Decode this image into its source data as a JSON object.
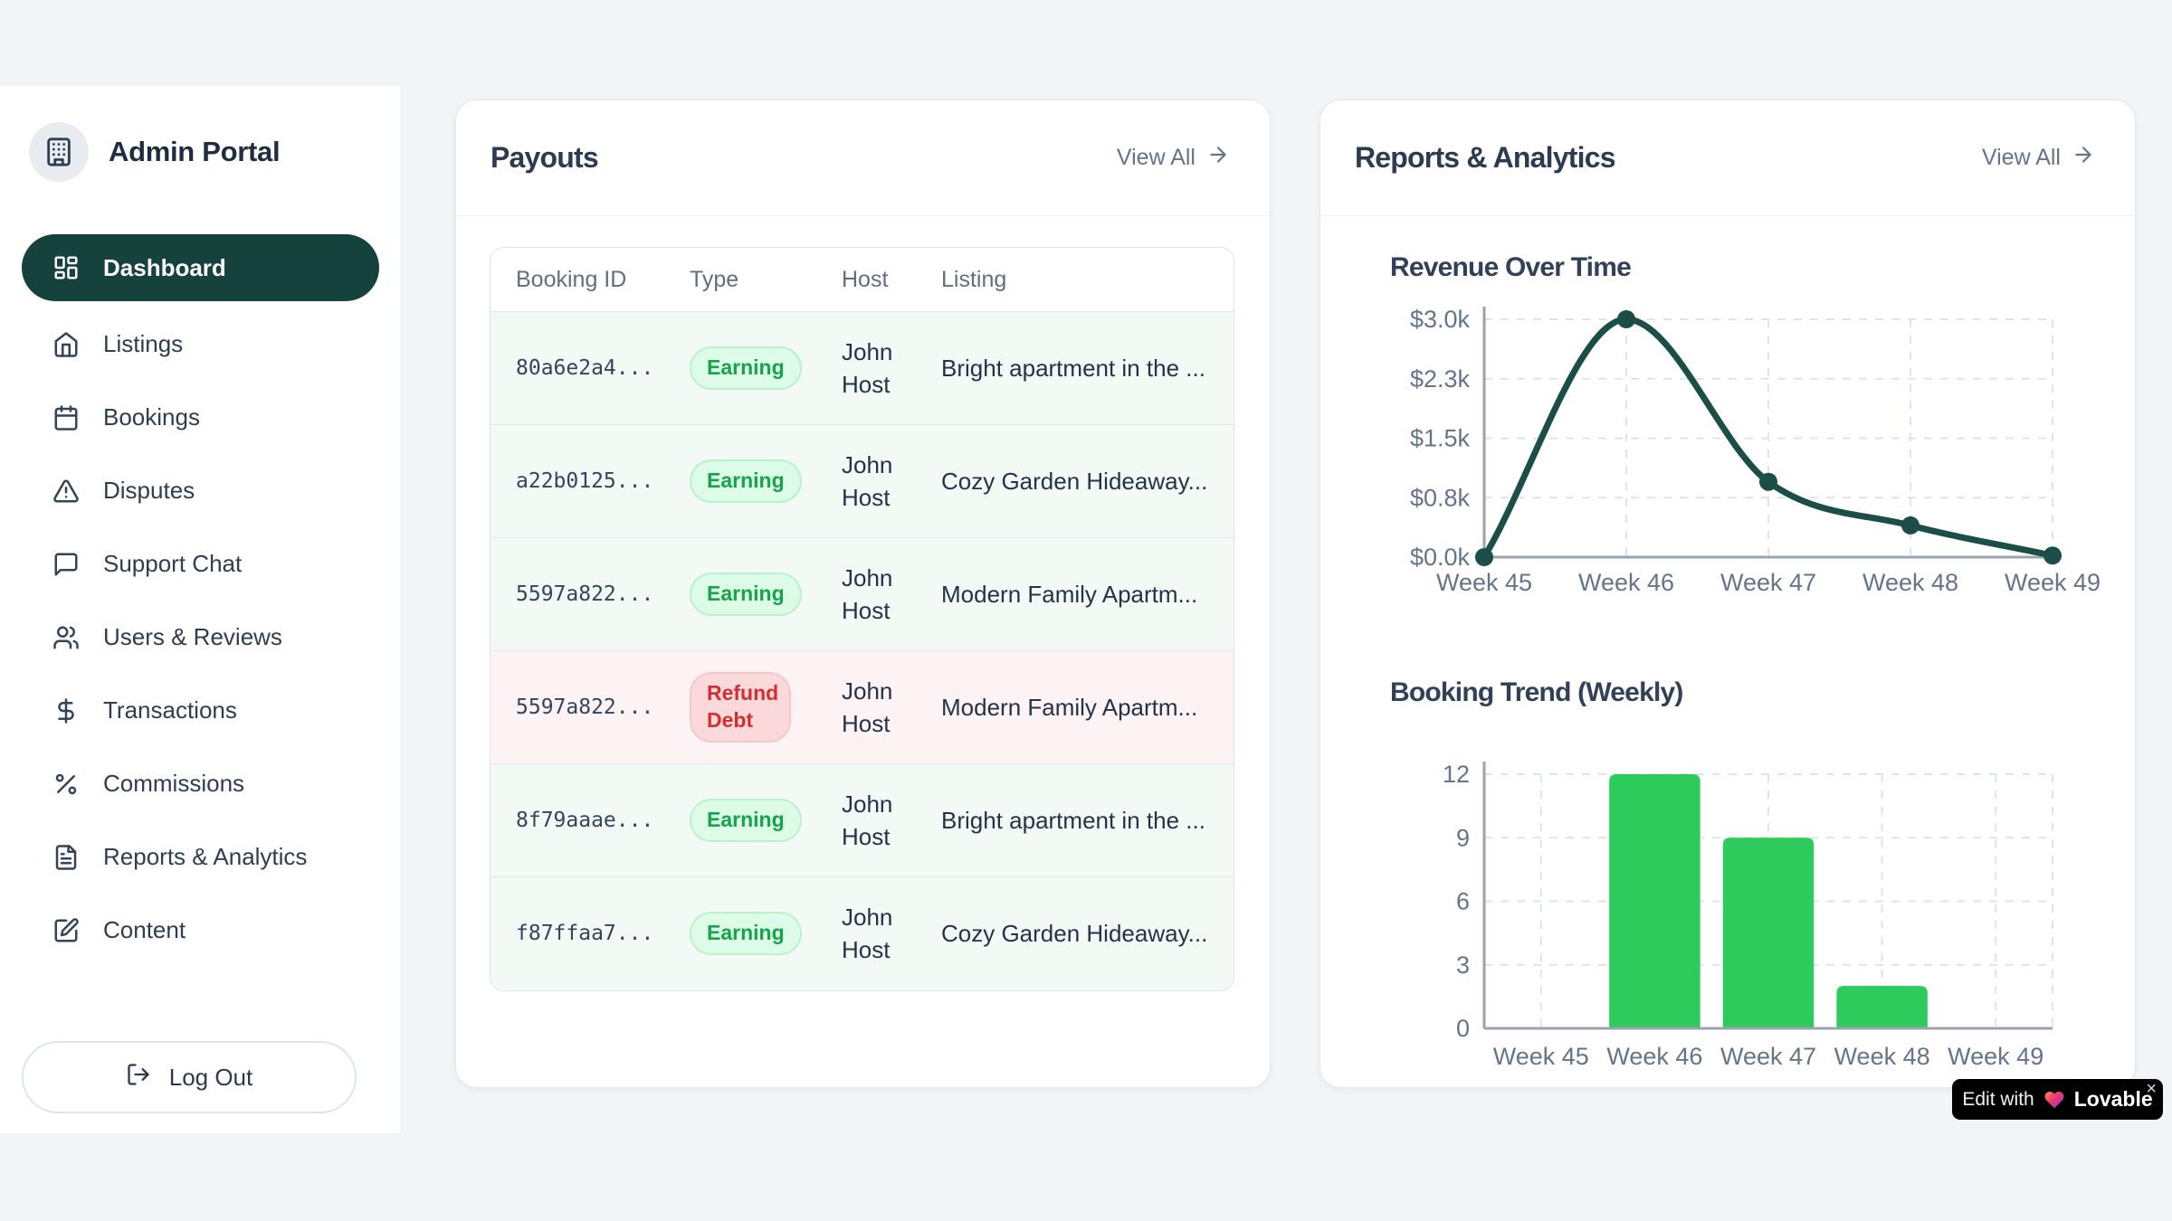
{
  "app": {
    "title": "Admin Portal"
  },
  "sidebar": {
    "items": [
      {
        "label": "Dashboard",
        "icon": "layout-dashboard",
        "active": true
      },
      {
        "label": "Listings",
        "icon": "home",
        "active": false
      },
      {
        "label": "Bookings",
        "icon": "calendar",
        "active": false
      },
      {
        "label": "Disputes",
        "icon": "alert-triangle",
        "active": false
      },
      {
        "label": "Support Chat",
        "icon": "message-square",
        "active": false
      },
      {
        "label": "Users & Reviews",
        "icon": "users",
        "active": false
      },
      {
        "label": "Transactions",
        "icon": "dollar-sign",
        "active": false
      },
      {
        "label": "Commissions",
        "icon": "percent",
        "active": false
      },
      {
        "label": "Reports & Analytics",
        "icon": "file-text",
        "active": false
      },
      {
        "label": "Content",
        "icon": "square-pen",
        "active": false
      }
    ],
    "logout_label": "Log Out"
  },
  "payouts": {
    "title": "Payouts",
    "view_all_label": "View All",
    "table": {
      "columns": [
        "Booking ID",
        "Type",
        "Host",
        "Listing"
      ],
      "rows": [
        {
          "booking_id": "80a6e2a4...",
          "type": "Earning",
          "host": "John Host",
          "listing": "Bright apartment in the ...",
          "tone": "earning"
        },
        {
          "booking_id": "a22b0125...",
          "type": "Earning",
          "host": "John Host",
          "listing": "Cozy Garden Hideaway...",
          "tone": "earning"
        },
        {
          "booking_id": "5597a822...",
          "type": "Earning",
          "host": "John Host",
          "listing": "Modern Family Apartm...",
          "tone": "earning"
        },
        {
          "booking_id": "5597a822...",
          "type": "Refund Debt",
          "host": "John Host",
          "listing": "Modern Family Apartm...",
          "tone": "refund"
        },
        {
          "booking_id": "8f79aaae...",
          "type": "Earning",
          "host": "John Host",
          "listing": "Bright apartment in the ...",
          "tone": "earning"
        },
        {
          "booking_id": "f87ffaa7...",
          "type": "Earning",
          "host": "John Host",
          "listing": "Cozy Garden Hideaway...",
          "tone": "earning"
        }
      ]
    }
  },
  "reports": {
    "title": "Reports & Analytics",
    "view_all_label": "View All"
  },
  "chart_data": [
    {
      "type": "line",
      "title": "Revenue Over Time",
      "x": [
        "Week 45",
        "Week 46",
        "Week 47",
        "Week 48",
        "Week 49"
      ],
      "values": [
        0,
        3000,
        950,
        400,
        20
      ],
      "y_ticks": [
        "$0.0k",
        "$0.8k",
        "$1.5k",
        "$2.3k",
        "$3.0k"
      ],
      "ylim": [
        0,
        3000
      ],
      "grid": true,
      "legend": "none",
      "line_color": "#1c4e48"
    },
    {
      "type": "bar",
      "title": "Booking Trend (Weekly)",
      "categories": [
        "Week 45",
        "Week 46",
        "Week 47",
        "Week 48",
        "Week 49"
      ],
      "values": [
        0,
        12,
        9,
        2,
        0
      ],
      "y_ticks": [
        "0",
        "3",
        "6",
        "9",
        "12"
      ],
      "ylim": [
        0,
        12
      ],
      "grid": true,
      "legend": "none",
      "bar_color": "#2dca5c"
    }
  ],
  "badge": {
    "prefix": "Edit with",
    "brand": "Lovable",
    "close": "×"
  },
  "colors": {
    "accent_dark_teal": "#15423c",
    "earning_badge_bg": "#dcfce7",
    "earning_badge_text": "#16a34a",
    "refund_badge_bg": "#fbd9da",
    "refund_badge_text": "#d22f30",
    "row_earning_bg": "#f3faf6",
    "row_refund_bg": "#fdf3f4",
    "line_color": "#1c4e48",
    "bar_color": "#2dca5c"
  }
}
